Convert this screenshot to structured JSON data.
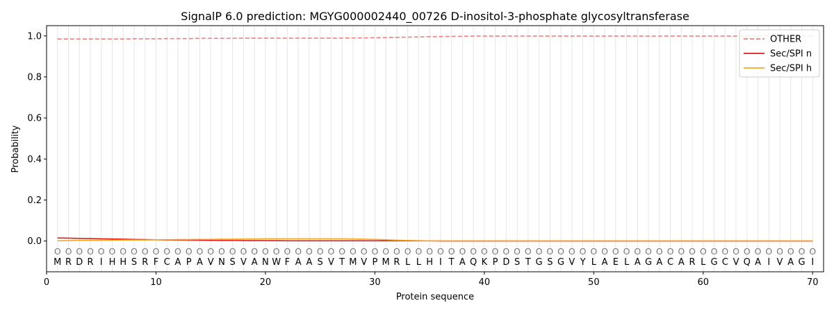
{
  "chart_data": {
    "type": "line",
    "title": "SignalP 6.0 prediction: MGYG000002440_00726 D-inositol-3-phosphate glycosyltransferase",
    "xlabel": "Protein sequence",
    "ylabel": "Probability",
    "xlim": [
      0,
      71
    ],
    "ylim": [
      -0.15,
      1.05
    ],
    "x_ticks": [
      0,
      10,
      20,
      30,
      40,
      50,
      60,
      70
    ],
    "y_ticks": [
      "0.0",
      "0.2",
      "0.4",
      "0.6",
      "0.8",
      "1.0"
    ],
    "sequence": [
      "M",
      "R",
      "D",
      "R",
      "I",
      "H",
      "H",
      "S",
      "R",
      "F",
      "C",
      "A",
      "P",
      "A",
      "V",
      "N",
      "S",
      "V",
      "A",
      "N",
      "W",
      "F",
      "A",
      "A",
      "S",
      "V",
      "T",
      "M",
      "V",
      "P",
      "M",
      "R",
      "L",
      "L",
      "H",
      "I",
      "T",
      "A",
      "Q",
      "K",
      "P",
      "D",
      "S",
      "T",
      "G",
      "S",
      "G",
      "V",
      "Y",
      "L",
      "A",
      "E",
      "L",
      "A",
      "G",
      "A",
      "C",
      "A",
      "R",
      "L",
      "G",
      "C",
      "V",
      "Q",
      "A",
      "I",
      "V",
      "A",
      "G",
      "I"
    ],
    "state_labels": [
      "O",
      "O",
      "O",
      "O",
      "O",
      "O",
      "O",
      "O",
      "O",
      "O",
      "O",
      "O",
      "O",
      "O",
      "O",
      "O",
      "O",
      "O",
      "O",
      "O",
      "O",
      "O",
      "O",
      "O",
      "O",
      "O",
      "O",
      "O",
      "O",
      "O",
      "O",
      "O",
      "O",
      "O",
      "O",
      "O",
      "O",
      "O",
      "O",
      "O",
      "O",
      "O",
      "O",
      "O",
      "O",
      "O",
      "O",
      "O",
      "O",
      "O",
      "O",
      "O",
      "O",
      "O",
      "O",
      "O",
      "O",
      "O",
      "O",
      "O",
      "O",
      "O",
      "O",
      "O",
      "O",
      "O",
      "O",
      "O",
      "O",
      "O"
    ],
    "legend_position": "top-right",
    "grid": "vertical lines at each residue",
    "series": [
      {
        "name": "OTHER",
        "color": "#f08080",
        "style": "dashed",
        "values": [
          0.985,
          0.985,
          0.985,
          0.985,
          0.985,
          0.985,
          0.985,
          0.986,
          0.986,
          0.986,
          0.987,
          0.987,
          0.987,
          0.988,
          0.988,
          0.988,
          0.988,
          0.989,
          0.989,
          0.989,
          0.989,
          0.989,
          0.989,
          0.989,
          0.989,
          0.989,
          0.989,
          0.99,
          0.99,
          0.991,
          0.992,
          0.993,
          0.994,
          0.995,
          0.996,
          0.997,
          0.998,
          0.998,
          0.999,
          0.999,
          0.999,
          0.999,
          0.999,
          0.999,
          0.999,
          0.999,
          0.999,
          0.999,
          0.999,
          0.999,
          0.999,
          0.999,
          0.999,
          0.999,
          0.999,
          0.999,
          0.999,
          0.999,
          0.999,
          0.999,
          0.999,
          0.999,
          0.999,
          0.999,
          0.999,
          0.999,
          0.999,
          0.999,
          0.999,
          0.999
        ]
      },
      {
        "name": "Sec/SPI n",
        "color": "#e31a1c",
        "style": "solid",
        "values": [
          0.015,
          0.014,
          0.013,
          0.012,
          0.011,
          0.01,
          0.009,
          0.008,
          0.007,
          0.006,
          0.005,
          0.005,
          0.004,
          0.004,
          0.003,
          0.003,
          0.003,
          0.002,
          0.002,
          0.002,
          0.002,
          0.001,
          0.001,
          0.001,
          0.001,
          0.001,
          0.001,
          0.001,
          0.001,
          0.001,
          0.001,
          0.001,
          0.001,
          0.001,
          0.001,
          0,
          0,
          0,
          0,
          0,
          0,
          0,
          0,
          0,
          0,
          0,
          0,
          0,
          0,
          0,
          0,
          0,
          0,
          0,
          0,
          0,
          0,
          0,
          0,
          0,
          0,
          0,
          0,
          0,
          0,
          0,
          0,
          0,
          0,
          0
        ]
      },
      {
        "name": "Sec/SPI h",
        "color": "#f5a623",
        "style": "solid",
        "values": [
          0.001,
          0.002,
          0.003,
          0.003,
          0.004,
          0.004,
          0.005,
          0.005,
          0.005,
          0.006,
          0.006,
          0.007,
          0.007,
          0.008,
          0.008,
          0.009,
          0.009,
          0.01,
          0.01,
          0.011,
          0.011,
          0.011,
          0.011,
          0.011,
          0.011,
          0.011,
          0.011,
          0.01,
          0.009,
          0.008,
          0.006,
          0.004,
          0.003,
          0.002,
          0.001,
          0.001,
          0.001,
          0.001,
          0.001,
          0.001,
          0.001,
          0.001,
          0.001,
          0.001,
          0.001,
          0.001,
          0.001,
          0.001,
          0.001,
          0.001,
          0.001,
          0.001,
          0.001,
          0.001,
          0.001,
          0.001,
          0.001,
          0.001,
          0.001,
          0.001,
          0.001,
          0.001,
          0.001,
          0.001,
          0.001,
          0.001,
          0.001,
          0.001,
          0.001,
          0.001
        ]
      }
    ]
  }
}
